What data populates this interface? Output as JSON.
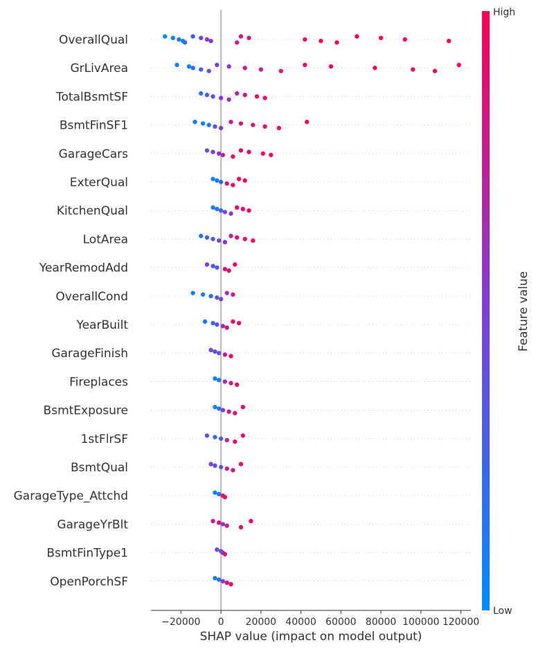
{
  "chart_data": {
    "type": "scatter",
    "subtype": "shap-beeswarm-summary",
    "xlabel": "SHAP value (impact on model output)",
    "xlim": [
      -35000,
      125000
    ],
    "x_ticks": [
      -20000,
      0,
      20000,
      40000,
      60000,
      80000,
      100000,
      120000
    ],
    "x_tick_labels": [
      "−20000",
      "0",
      "20000",
      "40000",
      "60000",
      "80000",
      "100000",
      "120000"
    ],
    "zero_line": 0,
    "features": [
      {
        "name": "OverallQual",
        "points": [
          {
            "x": -28000,
            "v": 0.02
          },
          {
            "x": -24000,
            "v": 0.05
          },
          {
            "x": -21000,
            "v": 0.1
          },
          {
            "x": -19000,
            "v": 0.08
          },
          {
            "x": -18000,
            "v": 0.2
          },
          {
            "x": -14000,
            "v": 0.3
          },
          {
            "x": -10000,
            "v": 0.45
          },
          {
            "x": -7000,
            "v": 0.5
          },
          {
            "x": -5000,
            "v": 0.55
          },
          {
            "x": 8000,
            "v": 0.75
          },
          {
            "x": 10000,
            "v": 0.8
          },
          {
            "x": 14000,
            "v": 0.85
          },
          {
            "x": 42000,
            "v": 0.95
          },
          {
            "x": 50000,
            "v": 0.96
          },
          {
            "x": 58000,
            "v": 0.97
          },
          {
            "x": 68000,
            "v": 0.98
          },
          {
            "x": 80000,
            "v": 0.99
          },
          {
            "x": 92000,
            "v": 0.99
          },
          {
            "x": 114000,
            "v": 1.0
          }
        ]
      },
      {
        "name": "GrLivArea",
        "points": [
          {
            "x": -22000,
            "v": 0.1
          },
          {
            "x": -16000,
            "v": 0.05
          },
          {
            "x": -14000,
            "v": 0.15
          },
          {
            "x": -10000,
            "v": 0.25
          },
          {
            "x": -6000,
            "v": 0.4
          },
          {
            "x": -2000,
            "v": 0.45
          },
          {
            "x": 4000,
            "v": 0.55
          },
          {
            "x": 12000,
            "v": 0.75
          },
          {
            "x": 20000,
            "v": 0.8
          },
          {
            "x": 30000,
            "v": 0.85
          },
          {
            "x": 42000,
            "v": 0.9
          },
          {
            "x": 55000,
            "v": 0.93
          },
          {
            "x": 77000,
            "v": 0.96
          },
          {
            "x": 96000,
            "v": 0.98
          },
          {
            "x": 107000,
            "v": 0.99
          },
          {
            "x": 119000,
            "v": 1.0
          }
        ]
      },
      {
        "name": "TotalBsmtSF",
        "points": [
          {
            "x": -10000,
            "v": 0.15
          },
          {
            "x": -7000,
            "v": 0.3
          },
          {
            "x": -4000,
            "v": 0.4
          },
          {
            "x": 0,
            "v": 0.5
          },
          {
            "x": 4000,
            "v": 0.6
          },
          {
            "x": 8000,
            "v": 0.7
          },
          {
            "x": 12000,
            "v": 0.8
          },
          {
            "x": 18000,
            "v": 0.9
          },
          {
            "x": 22000,
            "v": 0.95
          }
        ]
      },
      {
        "name": "BsmtFinSF1",
        "points": [
          {
            "x": -13000,
            "v": 0.1
          },
          {
            "x": -9000,
            "v": 0.05
          },
          {
            "x": -6000,
            "v": 0.1
          },
          {
            "x": -3000,
            "v": 0.35
          },
          {
            "x": 0,
            "v": 0.5
          },
          {
            "x": 5000,
            "v": 0.75
          },
          {
            "x": 10000,
            "v": 0.8
          },
          {
            "x": 16000,
            "v": 0.85
          },
          {
            "x": 22000,
            "v": 0.9
          },
          {
            "x": 29000,
            "v": 0.93
          },
          {
            "x": 43000,
            "v": 0.97
          }
        ]
      },
      {
        "name": "GarageCars",
        "points": [
          {
            "x": -7000,
            "v": 0.4
          },
          {
            "x": -4000,
            "v": 0.45
          },
          {
            "x": -1000,
            "v": 0.6
          },
          {
            "x": 1000,
            "v": 0.7
          },
          {
            "x": 6000,
            "v": 0.9
          },
          {
            "x": 10000,
            "v": 0.92
          },
          {
            "x": 14000,
            "v": 0.93
          },
          {
            "x": 21000,
            "v": 0.95
          },
          {
            "x": 25000,
            "v": 0.97
          }
        ]
      },
      {
        "name": "ExterQual",
        "points": [
          {
            "x": -4000,
            "v": 0.05
          },
          {
            "x": -2000,
            "v": 0.1
          },
          {
            "x": 0,
            "v": 0.2
          },
          {
            "x": 3000,
            "v": 0.85
          },
          {
            "x": 6000,
            "v": 0.9
          },
          {
            "x": 9000,
            "v": 0.95
          },
          {
            "x": 12000,
            "v": 0.95
          }
        ]
      },
      {
        "name": "KitchenQual",
        "points": [
          {
            "x": -4000,
            "v": 0.05
          },
          {
            "x": -2000,
            "v": 0.15
          },
          {
            "x": 0,
            "v": 0.25
          },
          {
            "x": 2000,
            "v": 0.5
          },
          {
            "x": 5000,
            "v": 0.55
          },
          {
            "x": 8000,
            "v": 0.9
          },
          {
            "x": 11000,
            "v": 0.92
          },
          {
            "x": 14000,
            "v": 0.95
          }
        ]
      },
      {
        "name": "LotArea",
        "points": [
          {
            "x": -10000,
            "v": 0.1
          },
          {
            "x": -7000,
            "v": 0.25
          },
          {
            "x": -4000,
            "v": 0.35
          },
          {
            "x": -1000,
            "v": 0.45
          },
          {
            "x": 2000,
            "v": 0.55
          },
          {
            "x": 5000,
            "v": 0.75
          },
          {
            "x": 8000,
            "v": 0.85
          },
          {
            "x": 12000,
            "v": 0.9
          },
          {
            "x": 16000,
            "v": 0.98
          }
        ]
      },
      {
        "name": "YearRemodAdd",
        "points": [
          {
            "x": -7000,
            "v": 0.5
          },
          {
            "x": -4000,
            "v": 0.35
          },
          {
            "x": -2000,
            "v": 0.3
          },
          {
            "x": 2000,
            "v": 0.85
          },
          {
            "x": 4000,
            "v": 0.9
          },
          {
            "x": 7000,
            "v": 0.92
          }
        ]
      },
      {
        "name": "OverallCond",
        "points": [
          {
            "x": -14000,
            "v": 0.05
          },
          {
            "x": -9000,
            "v": 0.1
          },
          {
            "x": -5000,
            "v": 0.2
          },
          {
            "x": -2000,
            "v": 0.35
          },
          {
            "x": 0,
            "v": 0.45
          },
          {
            "x": 3000,
            "v": 0.6
          },
          {
            "x": 6000,
            "v": 0.75
          }
        ]
      },
      {
        "name": "YearBuilt",
        "points": [
          {
            "x": -8000,
            "v": 0.15
          },
          {
            "x": -4000,
            "v": 0.25
          },
          {
            "x": -2000,
            "v": 0.4
          },
          {
            "x": 1000,
            "v": 0.6
          },
          {
            "x": 3000,
            "v": 0.85
          },
          {
            "x": 6000,
            "v": 0.9
          },
          {
            "x": 9000,
            "v": 0.92
          }
        ]
      },
      {
        "name": "GarageFinish",
        "points": [
          {
            "x": -5000,
            "v": 0.45
          },
          {
            "x": -3000,
            "v": 0.4
          },
          {
            "x": -1000,
            "v": 0.35
          },
          {
            "x": 2000,
            "v": 0.85
          },
          {
            "x": 5000,
            "v": 0.9
          }
        ]
      },
      {
        "name": "Fireplaces",
        "points": [
          {
            "x": -3000,
            "v": 0.05
          },
          {
            "x": -1000,
            "v": 0.1
          },
          {
            "x": 2000,
            "v": 0.6
          },
          {
            "x": 5000,
            "v": 0.85
          },
          {
            "x": 8000,
            "v": 0.92
          }
        ]
      },
      {
        "name": "BsmtExposure",
        "points": [
          {
            "x": -3000,
            "v": 0.05
          },
          {
            "x": -1000,
            "v": 0.15
          },
          {
            "x": 1000,
            "v": 0.5
          },
          {
            "x": 4000,
            "v": 0.8
          },
          {
            "x": 7000,
            "v": 0.88
          },
          {
            "x": 11000,
            "v": 0.93
          }
        ]
      },
      {
        "name": "1stFlrSF",
        "points": [
          {
            "x": -7000,
            "v": 0.4
          },
          {
            "x": -3000,
            "v": 0.2
          },
          {
            "x": 0,
            "v": 0.3
          },
          {
            "x": 3000,
            "v": 0.7
          },
          {
            "x": 7000,
            "v": 0.85
          },
          {
            "x": 11000,
            "v": 0.9
          }
        ]
      },
      {
        "name": "BsmtQual",
        "points": [
          {
            "x": -5000,
            "v": 0.5
          },
          {
            "x": -3000,
            "v": 0.4
          },
          {
            "x": 0,
            "v": 0.3
          },
          {
            "x": 3000,
            "v": 0.8
          },
          {
            "x": 6000,
            "v": 0.85
          },
          {
            "x": 10000,
            "v": 0.9
          }
        ]
      },
      {
        "name": "GarageType_Attchd",
        "points": [
          {
            "x": -3000,
            "v": 0.05
          },
          {
            "x": -1000,
            "v": 0.1
          },
          {
            "x": 1000,
            "v": 0.9
          },
          {
            "x": 2000,
            "v": 0.95
          }
        ]
      },
      {
        "name": "GarageYrBlt",
        "points": [
          {
            "x": -4000,
            "v": 0.85
          },
          {
            "x": -1000,
            "v": 0.9
          },
          {
            "x": 1000,
            "v": 0.5
          },
          {
            "x": 3000,
            "v": 0.8
          },
          {
            "x": 10000,
            "v": 0.92
          },
          {
            "x": 15000,
            "v": 0.95
          }
        ]
      },
      {
        "name": "BsmtFinType1",
        "points": [
          {
            "x": -2000,
            "v": 0.4
          },
          {
            "x": 0,
            "v": 0.35
          },
          {
            "x": 1000,
            "v": 0.6
          },
          {
            "x": 2000,
            "v": 0.85
          }
        ]
      },
      {
        "name": "OpenPorchSF",
        "points": [
          {
            "x": -3000,
            "v": 0.1
          },
          {
            "x": -1000,
            "v": 0.15
          },
          {
            "x": 1000,
            "v": 0.5
          },
          {
            "x": 3000,
            "v": 0.85
          },
          {
            "x": 5000,
            "v": 0.9
          }
        ]
      }
    ],
    "colorbar": {
      "label": "Feature value",
      "high_label": "High",
      "low_label": "Low",
      "low_color": "#008bfb",
      "high_color": "#ff0051",
      "mid_color": "#7e3fd6"
    },
    "colors": {
      "axis": "#333333",
      "zero_line": "#999999"
    }
  }
}
